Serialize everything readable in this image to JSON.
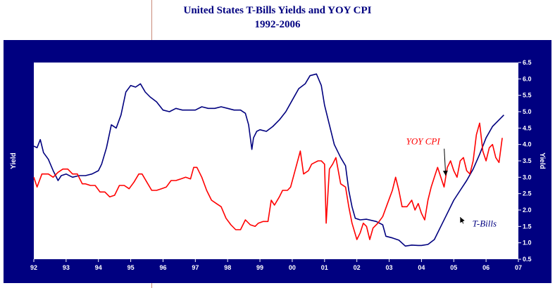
{
  "page": {
    "title_line1": "United States T-Bills Yields and YOY CPI",
    "title_line2": "1992-2006"
  },
  "colors": {
    "frame": "#000080",
    "plot_bg": "#ffffff",
    "tbill_line": "#00007f",
    "cpi_line": "#ff0000",
    "title": "#000080",
    "axis_text": "#ffffff"
  },
  "chart_data": {
    "type": "line",
    "title": "United States T-Bills Yields and YOY CPI",
    "subtitle": "1992-2006",
    "ylabel_left": "Yield",
    "ylabel_right": "Yield",
    "xlim": [
      1992,
      2007
    ],
    "ylim": [
      0.5,
      6.5
    ],
    "x_tick_values": [
      1992,
      1993,
      1994,
      1995,
      1996,
      1997,
      1998,
      1999,
      2000,
      2001,
      2002,
      2003,
      2004,
      2005,
      2006,
      2007
    ],
    "x_tick_labels": [
      "92",
      "93",
      "94",
      "95",
      "96",
      "97",
      "98",
      "99",
      "00",
      "01",
      "02",
      "03",
      "04",
      "05",
      "06",
      "07"
    ],
    "y_ticks": [
      0.5,
      1.0,
      1.5,
      2.0,
      2.5,
      3.0,
      3.5,
      4.0,
      4.5,
      5.0,
      5.5,
      6.0,
      6.5
    ],
    "y_tick_labels": [
      "0.5",
      "1.0",
      "1.5",
      "2.0",
      "2.5",
      "3.0",
      "3.5",
      "4.0",
      "4.5",
      "5.0",
      "5.5",
      "6.0",
      "6.5"
    ],
    "grid": false,
    "series": [
      {
        "name": "T-Bills",
        "color": "#00007f",
        "points": [
          [
            1992.0,
            3.95
          ],
          [
            1992.1,
            3.9
          ],
          [
            1992.2,
            4.15
          ],
          [
            1992.3,
            3.75
          ],
          [
            1992.45,
            3.55
          ],
          [
            1992.6,
            3.2
          ],
          [
            1992.75,
            2.9
          ],
          [
            1992.85,
            3.05
          ],
          [
            1993.0,
            3.1
          ],
          [
            1993.2,
            3.0
          ],
          [
            1993.4,
            3.05
          ],
          [
            1993.6,
            3.05
          ],
          [
            1993.8,
            3.1
          ],
          [
            1994.0,
            3.2
          ],
          [
            1994.1,
            3.4
          ],
          [
            1994.25,
            3.9
          ],
          [
            1994.4,
            4.6
          ],
          [
            1994.55,
            4.5
          ],
          [
            1994.7,
            4.9
          ],
          [
            1994.85,
            5.6
          ],
          [
            1995.0,
            5.8
          ],
          [
            1995.15,
            5.75
          ],
          [
            1995.3,
            5.85
          ],
          [
            1995.45,
            5.6
          ],
          [
            1995.6,
            5.45
          ],
          [
            1995.8,
            5.3
          ],
          [
            1996.0,
            5.05
          ],
          [
            1996.2,
            5.0
          ],
          [
            1996.4,
            5.1
          ],
          [
            1996.6,
            5.05
          ],
          [
            1996.8,
            5.05
          ],
          [
            1997.0,
            5.05
          ],
          [
            1997.2,
            5.15
          ],
          [
            1997.4,
            5.1
          ],
          [
            1997.6,
            5.1
          ],
          [
            1997.8,
            5.15
          ],
          [
            1998.0,
            5.1
          ],
          [
            1998.2,
            5.05
          ],
          [
            1998.4,
            5.05
          ],
          [
            1998.55,
            4.95
          ],
          [
            1998.65,
            4.6
          ],
          [
            1998.75,
            3.85
          ],
          [
            1998.8,
            4.2
          ],
          [
            1998.9,
            4.4
          ],
          [
            1999.0,
            4.45
          ],
          [
            1999.2,
            4.4
          ],
          [
            1999.4,
            4.55
          ],
          [
            1999.6,
            4.75
          ],
          [
            1999.8,
            5.0
          ],
          [
            2000.0,
            5.35
          ],
          [
            2000.2,
            5.7
          ],
          [
            2000.4,
            5.85
          ],
          [
            2000.55,
            6.1
          ],
          [
            2000.75,
            6.15
          ],
          [
            2000.9,
            5.8
          ],
          [
            2001.0,
            5.2
          ],
          [
            2001.15,
            4.6
          ],
          [
            2001.3,
            4.0
          ],
          [
            2001.5,
            3.6
          ],
          [
            2001.65,
            3.35
          ],
          [
            2001.75,
            2.6
          ],
          [
            2001.85,
            2.1
          ],
          [
            2001.95,
            1.75
          ],
          [
            2002.1,
            1.7
          ],
          [
            2002.3,
            1.72
          ],
          [
            2002.6,
            1.65
          ],
          [
            2002.8,
            1.55
          ],
          [
            2002.9,
            1.2
          ],
          [
            2003.1,
            1.15
          ],
          [
            2003.3,
            1.08
          ],
          [
            2003.5,
            0.9
          ],
          [
            2003.7,
            0.93
          ],
          [
            2003.9,
            0.92
          ],
          [
            2004.0,
            0.92
          ],
          [
            2004.2,
            0.95
          ],
          [
            2004.4,
            1.1
          ],
          [
            2004.6,
            1.5
          ],
          [
            2004.8,
            1.9
          ],
          [
            2005.0,
            2.3
          ],
          [
            2005.2,
            2.6
          ],
          [
            2005.4,
            2.9
          ],
          [
            2005.6,
            3.25
          ],
          [
            2005.8,
            3.7
          ],
          [
            2006.0,
            4.2
          ],
          [
            2006.2,
            4.55
          ],
          [
            2006.4,
            4.75
          ],
          [
            2006.55,
            4.9
          ]
        ]
      },
      {
        "name": "YOY CPI",
        "color": "#ff0000",
        "points": [
          [
            1992.0,
            3.0
          ],
          [
            1992.1,
            2.7
          ],
          [
            1992.25,
            3.1
          ],
          [
            1992.45,
            3.1
          ],
          [
            1992.6,
            3.0
          ],
          [
            1992.75,
            3.15
          ],
          [
            1992.9,
            3.25
          ],
          [
            1993.05,
            3.25
          ],
          [
            1993.2,
            3.1
          ],
          [
            1993.35,
            3.1
          ],
          [
            1993.5,
            2.8
          ],
          [
            1993.6,
            2.8
          ],
          [
            1993.75,
            2.75
          ],
          [
            1993.9,
            2.75
          ],
          [
            1994.05,
            2.55
          ],
          [
            1994.2,
            2.55
          ],
          [
            1994.35,
            2.4
          ],
          [
            1994.5,
            2.45
          ],
          [
            1994.65,
            2.75
          ],
          [
            1994.8,
            2.75
          ],
          [
            1994.95,
            2.65
          ],
          [
            1995.1,
            2.85
          ],
          [
            1995.25,
            3.1
          ],
          [
            1995.35,
            3.1
          ],
          [
            1995.5,
            2.85
          ],
          [
            1995.65,
            2.6
          ],
          [
            1995.8,
            2.6
          ],
          [
            1995.95,
            2.65
          ],
          [
            1996.1,
            2.7
          ],
          [
            1996.25,
            2.9
          ],
          [
            1996.4,
            2.9
          ],
          [
            1996.55,
            2.95
          ],
          [
            1996.7,
            3.0
          ],
          [
            1996.85,
            2.95
          ],
          [
            1996.95,
            3.3
          ],
          [
            1997.05,
            3.3
          ],
          [
            1997.2,
            3.0
          ],
          [
            1997.35,
            2.6
          ],
          [
            1997.5,
            2.3
          ],
          [
            1997.65,
            2.2
          ],
          [
            1997.8,
            2.1
          ],
          [
            1997.95,
            1.75
          ],
          [
            1998.1,
            1.55
          ],
          [
            1998.25,
            1.4
          ],
          [
            1998.4,
            1.4
          ],
          [
            1998.55,
            1.7
          ],
          [
            1998.7,
            1.55
          ],
          [
            1998.85,
            1.5
          ],
          [
            1998.95,
            1.6
          ],
          [
            1999.1,
            1.65
          ],
          [
            1999.25,
            1.65
          ],
          [
            1999.35,
            2.3
          ],
          [
            1999.45,
            2.15
          ],
          [
            1999.6,
            2.4
          ],
          [
            1999.7,
            2.6
          ],
          [
            1999.85,
            2.6
          ],
          [
            1999.95,
            2.7
          ],
          [
            2000.1,
            3.25
          ],
          [
            2000.25,
            3.8
          ],
          [
            2000.35,
            3.1
          ],
          [
            2000.5,
            3.2
          ],
          [
            2000.6,
            3.4
          ],
          [
            2000.7,
            3.45
          ],
          [
            2000.8,
            3.5
          ],
          [
            2000.9,
            3.5
          ],
          [
            2000.95,
            3.45
          ],
          [
            2001.0,
            3.4
          ],
          [
            2001.05,
            1.6
          ],
          [
            2001.15,
            3.25
          ],
          [
            2001.25,
            3.4
          ],
          [
            2001.35,
            3.6
          ],
          [
            2001.5,
            2.8
          ],
          [
            2001.65,
            2.7
          ],
          [
            2001.75,
            2.1
          ],
          [
            2001.85,
            1.6
          ],
          [
            2002.0,
            1.1
          ],
          [
            2002.1,
            1.3
          ],
          [
            2002.2,
            1.6
          ],
          [
            2002.3,
            1.5
          ],
          [
            2002.4,
            1.1
          ],
          [
            2002.5,
            1.45
          ],
          [
            2002.65,
            1.6
          ],
          [
            2002.8,
            1.8
          ],
          [
            2002.95,
            2.2
          ],
          [
            2003.1,
            2.6
          ],
          [
            2003.2,
            3.0
          ],
          [
            2003.3,
            2.6
          ],
          [
            2003.4,
            2.1
          ],
          [
            2003.55,
            2.1
          ],
          [
            2003.7,
            2.3
          ],
          [
            2003.8,
            2.0
          ],
          [
            2003.9,
            2.2
          ],
          [
            2004.0,
            1.9
          ],
          [
            2004.1,
            1.7
          ],
          [
            2004.2,
            2.3
          ],
          [
            2004.3,
            2.7
          ],
          [
            2004.4,
            3.0
          ],
          [
            2004.5,
            3.3
          ],
          [
            2004.6,
            3.0
          ],
          [
            2004.7,
            2.7
          ],
          [
            2004.8,
            3.3
          ],
          [
            2004.9,
            3.5
          ],
          [
            2005.0,
            3.2
          ],
          [
            2005.1,
            3.0
          ],
          [
            2005.2,
            3.5
          ],
          [
            2005.3,
            3.6
          ],
          [
            2005.4,
            3.2
          ],
          [
            2005.5,
            3.1
          ],
          [
            2005.6,
            3.5
          ],
          [
            2005.7,
            4.3
          ],
          [
            2005.8,
            4.65
          ],
          [
            2005.9,
            3.8
          ],
          [
            2006.0,
            3.5
          ],
          [
            2006.1,
            3.9
          ],
          [
            2006.2,
            4.0
          ],
          [
            2006.3,
            3.6
          ],
          [
            2006.4,
            3.45
          ],
          [
            2006.5,
            4.2
          ]
        ]
      }
    ],
    "annotations": [
      {
        "text": "YOY CPI",
        "color": "#ff0000",
        "label_x": 2004.05,
        "label_y": 4.0,
        "arrow_to": [
          2004.75,
          3.05
        ]
      },
      {
        "text": "T-Bills",
        "color": "#000080",
        "label_x": 2005.95,
        "label_y": 1.5,
        "arrow_to": [
          2005.2,
          1.78
        ]
      }
    ]
  }
}
